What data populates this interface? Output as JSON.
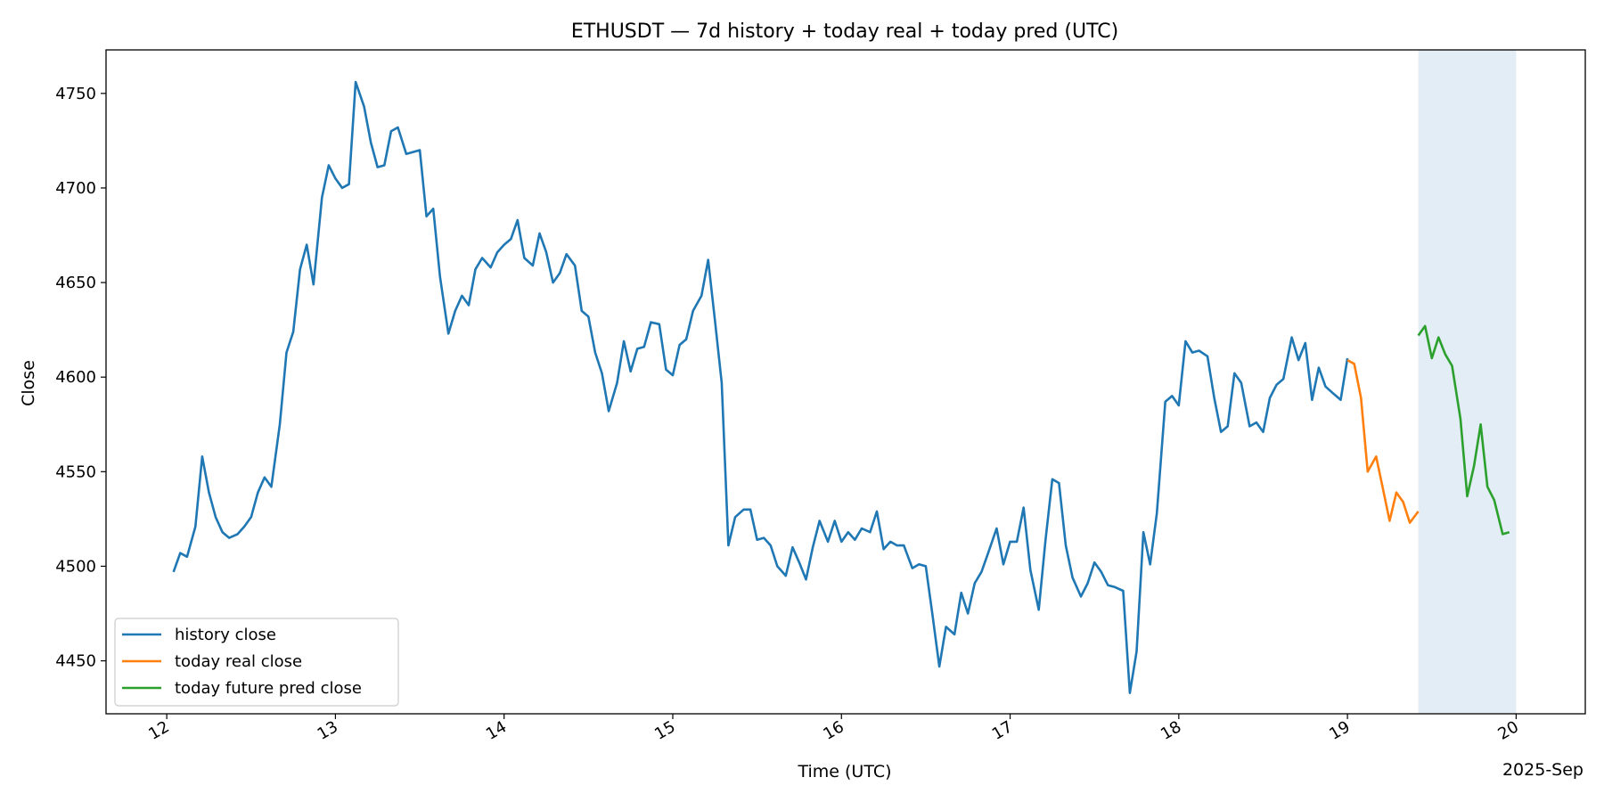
{
  "chart_data": {
    "type": "line",
    "title": "ETHUSDT — 7d history + today real + today pred (UTC)",
    "xlabel": "Time (UTC)",
    "ylabel": "Close",
    "x_offset_label": "2025-Sep",
    "x_unit": "day of month (2025-09), fractional",
    "xlim": [
      11.64,
      20.41
    ],
    "ylim": [
      4422,
      4773
    ],
    "x_ticks": [
      {
        "value": 12,
        "label": "12"
      },
      {
        "value": 13,
        "label": "13"
      },
      {
        "value": 14,
        "label": "14"
      },
      {
        "value": 15,
        "label": "15"
      },
      {
        "value": 16,
        "label": "16"
      },
      {
        "value": 17,
        "label": "17"
      },
      {
        "value": 18,
        "label": "18"
      },
      {
        "value": 19,
        "label": "19"
      },
      {
        "value": 20,
        "label": "20"
      }
    ],
    "y_ticks": [
      {
        "value": 4450,
        "label": "4450"
      },
      {
        "value": 4500,
        "label": "4500"
      },
      {
        "value": 4550,
        "label": "4550"
      },
      {
        "value": 4600,
        "label": "4600"
      },
      {
        "value": 4650,
        "label": "4650"
      },
      {
        "value": 4700,
        "label": "4700"
      },
      {
        "value": 4750,
        "label": "4750"
      }
    ],
    "grid": false,
    "legend": "lower-left",
    "shaded_region": {
      "x0": 19.42,
      "x1": 20.0,
      "color": "#c6dcec",
      "opacity": 0.5
    },
    "series": [
      {
        "name": "history close",
        "color": "#1f77b4",
        "points": [
          [
            12.04,
            4497
          ],
          [
            12.08,
            4507
          ],
          [
            12.12,
            4505
          ],
          [
            12.17,
            4521
          ],
          [
            12.21,
            4558
          ],
          [
            12.25,
            4539
          ],
          [
            12.29,
            4526
          ],
          [
            12.33,
            4518
          ],
          [
            12.37,
            4515
          ],
          [
            12.42,
            4517
          ],
          [
            12.46,
            4521
          ],
          [
            12.5,
            4526
          ],
          [
            12.54,
            4539
          ],
          [
            12.58,
            4547
          ],
          [
            12.62,
            4542
          ],
          [
            12.67,
            4575
          ],
          [
            12.71,
            4613
          ],
          [
            12.75,
            4624
          ],
          [
            12.79,
            4657
          ],
          [
            12.83,
            4670
          ],
          [
            12.87,
            4649
          ],
          [
            12.92,
            4695
          ],
          [
            12.96,
            4712
          ],
          [
            13.0,
            4705
          ],
          [
            13.04,
            4700
          ],
          [
            13.08,
            4702
          ],
          [
            13.12,
            4756
          ],
          [
            13.17,
            4743
          ],
          [
            13.21,
            4724
          ],
          [
            13.25,
            4711
          ],
          [
            13.29,
            4712
          ],
          [
            13.33,
            4730
          ],
          [
            13.37,
            4732
          ],
          [
            13.42,
            4718
          ],
          [
            13.46,
            4719
          ],
          [
            13.5,
            4720
          ],
          [
            13.54,
            4685
          ],
          [
            13.58,
            4689
          ],
          [
            13.62,
            4653
          ],
          [
            13.67,
            4623
          ],
          [
            13.71,
            4635
          ],
          [
            13.75,
            4643
          ],
          [
            13.79,
            4638
          ],
          [
            13.83,
            4657
          ],
          [
            13.87,
            4663
          ],
          [
            13.92,
            4658
          ],
          [
            13.96,
            4666
          ],
          [
            14.0,
            4670
          ],
          [
            14.04,
            4673
          ],
          [
            14.08,
            4683
          ],
          [
            14.12,
            4663
          ],
          [
            14.17,
            4659
          ],
          [
            14.21,
            4676
          ],
          [
            14.25,
            4666
          ],
          [
            14.29,
            4650
          ],
          [
            14.33,
            4655
          ],
          [
            14.37,
            4665
          ],
          [
            14.42,
            4659
          ],
          [
            14.46,
            4635
          ],
          [
            14.5,
            4632
          ],
          [
            14.54,
            4613
          ],
          [
            14.58,
            4602
          ],
          [
            14.62,
            4582
          ],
          [
            14.67,
            4597
          ],
          [
            14.71,
            4619
          ],
          [
            14.75,
            4603
          ],
          [
            14.79,
            4615
          ],
          [
            14.83,
            4616
          ],
          [
            14.87,
            4629
          ],
          [
            14.92,
            4628
          ],
          [
            14.96,
            4604
          ],
          [
            15.0,
            4601
          ],
          [
            15.04,
            4617
          ],
          [
            15.08,
            4620
          ],
          [
            15.12,
            4635
          ],
          [
            15.17,
            4643
          ],
          [
            15.21,
            4662
          ],
          [
            15.25,
            4630
          ],
          [
            15.29,
            4597
          ],
          [
            15.33,
            4511
          ],
          [
            15.37,
            4526
          ],
          [
            15.42,
            4530
          ],
          [
            15.46,
            4530
          ],
          [
            15.5,
            4514
          ],
          [
            15.54,
            4515
          ],
          [
            15.58,
            4511
          ],
          [
            15.62,
            4500
          ],
          [
            15.67,
            4495
          ],
          [
            15.71,
            4510
          ],
          [
            15.75,
            4502
          ],
          [
            15.79,
            4493
          ],
          [
            15.83,
            4510
          ],
          [
            15.87,
            4524
          ],
          [
            15.92,
            4513
          ],
          [
            15.96,
            4524
          ],
          [
            16.0,
            4513
          ],
          [
            16.04,
            4518
          ],
          [
            16.08,
            4514
          ],
          [
            16.12,
            4520
          ],
          [
            16.17,
            4518
          ],
          [
            16.21,
            4529
          ],
          [
            16.25,
            4509
          ],
          [
            16.29,
            4513
          ],
          [
            16.33,
            4511
          ],
          [
            16.37,
            4511
          ],
          [
            16.42,
            4499
          ],
          [
            16.46,
            4501
          ],
          [
            16.5,
            4500
          ],
          [
            16.54,
            4474
          ],
          [
            16.58,
            4447
          ],
          [
            16.62,
            4468
          ],
          [
            16.67,
            4464
          ],
          [
            16.71,
            4486
          ],
          [
            16.75,
            4475
          ],
          [
            16.79,
            4491
          ],
          [
            16.83,
            4497
          ],
          [
            16.87,
            4507
          ],
          [
            16.92,
            4520
          ],
          [
            16.96,
            4501
          ],
          [
            17.0,
            4513
          ],
          [
            17.04,
            4513
          ],
          [
            17.08,
            4531
          ],
          [
            17.12,
            4498
          ],
          [
            17.17,
            4477
          ],
          [
            17.21,
            4514
          ],
          [
            17.25,
            4546
          ],
          [
            17.29,
            4544
          ],
          [
            17.33,
            4511
          ],
          [
            17.37,
            4494
          ],
          [
            17.42,
            4484
          ],
          [
            17.46,
            4491
          ],
          [
            17.5,
            4502
          ],
          [
            17.54,
            4497
          ],
          [
            17.58,
            4490
          ],
          [
            17.62,
            4489
          ],
          [
            17.67,
            4487
          ],
          [
            17.71,
            4433
          ],
          [
            17.75,
            4455
          ],
          [
            17.79,
            4518
          ],
          [
            17.83,
            4501
          ],
          [
            17.87,
            4528
          ],
          [
            17.92,
            4587
          ],
          [
            17.96,
            4590
          ],
          [
            18.0,
            4585
          ],
          [
            18.04,
            4619
          ],
          [
            18.08,
            4613
          ],
          [
            18.12,
            4614
          ],
          [
            18.17,
            4611
          ],
          [
            18.21,
            4589
          ],
          [
            18.25,
            4571
          ],
          [
            18.29,
            4574
          ],
          [
            18.33,
            4602
          ],
          [
            18.37,
            4597
          ],
          [
            18.42,
            4574
          ],
          [
            18.46,
            4576
          ],
          [
            18.5,
            4571
          ],
          [
            18.54,
            4589
          ],
          [
            18.58,
            4596
          ],
          [
            18.62,
            4599
          ],
          [
            18.67,
            4621
          ],
          [
            18.71,
            4609
          ],
          [
            18.75,
            4618
          ],
          [
            18.79,
            4588
          ],
          [
            18.83,
            4605
          ],
          [
            18.87,
            4595
          ],
          [
            18.92,
            4591
          ],
          [
            18.96,
            4588
          ],
          [
            19.0,
            4610
          ]
        ]
      },
      {
        "name": "today real close",
        "color": "#ff7f0e",
        "points": [
          [
            19.0,
            4609
          ],
          [
            19.04,
            4607
          ],
          [
            19.08,
            4589
          ],
          [
            19.12,
            4550
          ],
          [
            19.17,
            4558
          ],
          [
            19.21,
            4541
          ],
          [
            19.25,
            4524
          ],
          [
            19.29,
            4539
          ],
          [
            19.33,
            4534
          ],
          [
            19.37,
            4523
          ],
          [
            19.42,
            4529
          ]
        ]
      },
      {
        "name": "today future pred close",
        "color": "#2ca02c",
        "points": [
          [
            19.42,
            4622
          ],
          [
            19.46,
            4627
          ],
          [
            19.5,
            4610
          ],
          [
            19.54,
            4621
          ],
          [
            19.58,
            4612
          ],
          [
            19.62,
            4606
          ],
          [
            19.67,
            4578
          ],
          [
            19.71,
            4537
          ],
          [
            19.75,
            4553
          ],
          [
            19.79,
            4575
          ],
          [
            19.83,
            4542
          ],
          [
            19.87,
            4535
          ],
          [
            19.92,
            4517
          ],
          [
            19.96,
            4518
          ]
        ]
      }
    ]
  }
}
